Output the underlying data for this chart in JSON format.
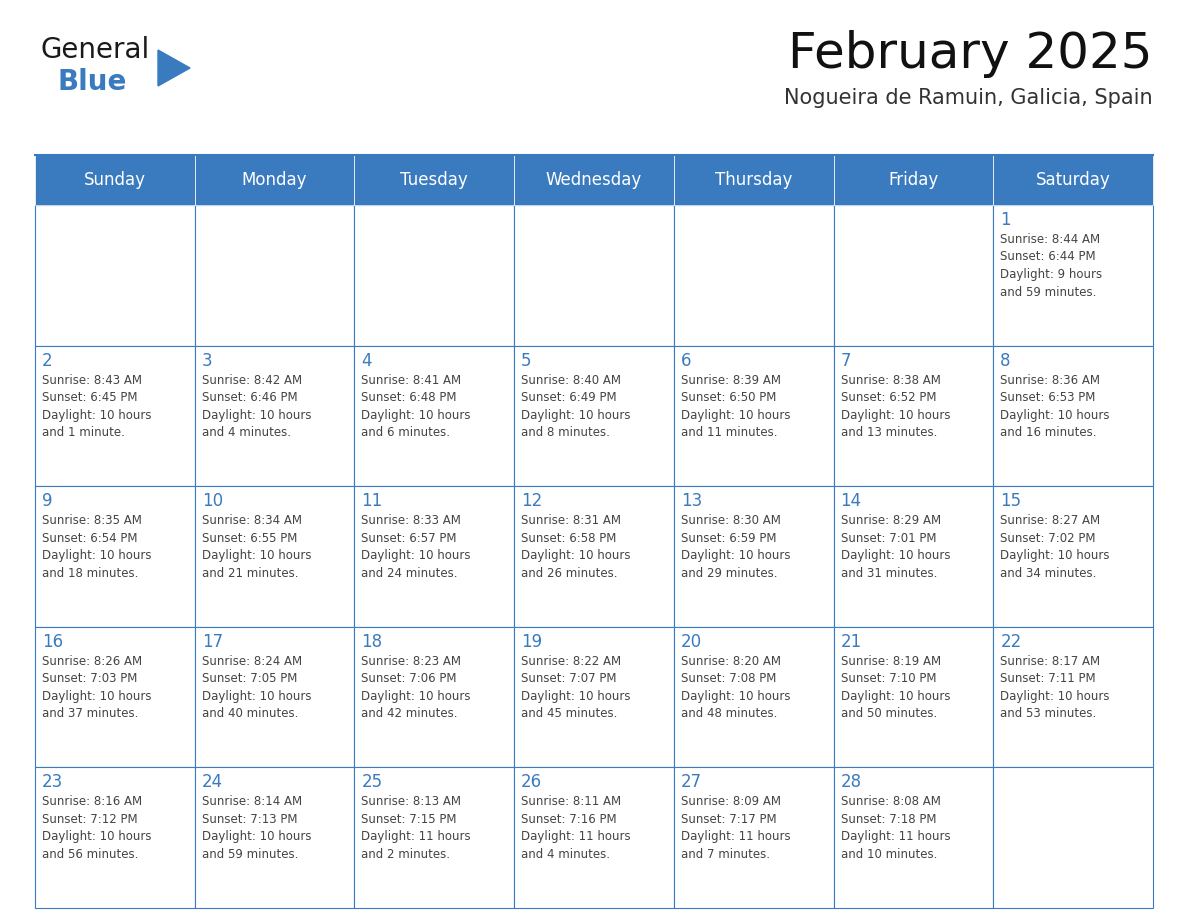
{
  "title": "February 2025",
  "subtitle": "Nogueira de Ramuin, Galicia, Spain",
  "header_color": "#3a7bbf",
  "header_text_color": "#ffffff",
  "cell_bg_color": "#ffffff",
  "border_color": "#3a7bbf",
  "text_color": "#444444",
  "day_number_color": "#3a7bbf",
  "days_of_week": [
    "Sunday",
    "Monday",
    "Tuesday",
    "Wednesday",
    "Thursday",
    "Friday",
    "Saturday"
  ],
  "weeks": [
    [
      {
        "day": null,
        "info": null
      },
      {
        "day": null,
        "info": null
      },
      {
        "day": null,
        "info": null
      },
      {
        "day": null,
        "info": null
      },
      {
        "day": null,
        "info": null
      },
      {
        "day": null,
        "info": null
      },
      {
        "day": 1,
        "info": "Sunrise: 8:44 AM\nSunset: 6:44 PM\nDaylight: 9 hours\nand 59 minutes."
      }
    ],
    [
      {
        "day": 2,
        "info": "Sunrise: 8:43 AM\nSunset: 6:45 PM\nDaylight: 10 hours\nand 1 minute."
      },
      {
        "day": 3,
        "info": "Sunrise: 8:42 AM\nSunset: 6:46 PM\nDaylight: 10 hours\nand 4 minutes."
      },
      {
        "day": 4,
        "info": "Sunrise: 8:41 AM\nSunset: 6:48 PM\nDaylight: 10 hours\nand 6 minutes."
      },
      {
        "day": 5,
        "info": "Sunrise: 8:40 AM\nSunset: 6:49 PM\nDaylight: 10 hours\nand 8 minutes."
      },
      {
        "day": 6,
        "info": "Sunrise: 8:39 AM\nSunset: 6:50 PM\nDaylight: 10 hours\nand 11 minutes."
      },
      {
        "day": 7,
        "info": "Sunrise: 8:38 AM\nSunset: 6:52 PM\nDaylight: 10 hours\nand 13 minutes."
      },
      {
        "day": 8,
        "info": "Sunrise: 8:36 AM\nSunset: 6:53 PM\nDaylight: 10 hours\nand 16 minutes."
      }
    ],
    [
      {
        "day": 9,
        "info": "Sunrise: 8:35 AM\nSunset: 6:54 PM\nDaylight: 10 hours\nand 18 minutes."
      },
      {
        "day": 10,
        "info": "Sunrise: 8:34 AM\nSunset: 6:55 PM\nDaylight: 10 hours\nand 21 minutes."
      },
      {
        "day": 11,
        "info": "Sunrise: 8:33 AM\nSunset: 6:57 PM\nDaylight: 10 hours\nand 24 minutes."
      },
      {
        "day": 12,
        "info": "Sunrise: 8:31 AM\nSunset: 6:58 PM\nDaylight: 10 hours\nand 26 minutes."
      },
      {
        "day": 13,
        "info": "Sunrise: 8:30 AM\nSunset: 6:59 PM\nDaylight: 10 hours\nand 29 minutes."
      },
      {
        "day": 14,
        "info": "Sunrise: 8:29 AM\nSunset: 7:01 PM\nDaylight: 10 hours\nand 31 minutes."
      },
      {
        "day": 15,
        "info": "Sunrise: 8:27 AM\nSunset: 7:02 PM\nDaylight: 10 hours\nand 34 minutes."
      }
    ],
    [
      {
        "day": 16,
        "info": "Sunrise: 8:26 AM\nSunset: 7:03 PM\nDaylight: 10 hours\nand 37 minutes."
      },
      {
        "day": 17,
        "info": "Sunrise: 8:24 AM\nSunset: 7:05 PM\nDaylight: 10 hours\nand 40 minutes."
      },
      {
        "day": 18,
        "info": "Sunrise: 8:23 AM\nSunset: 7:06 PM\nDaylight: 10 hours\nand 42 minutes."
      },
      {
        "day": 19,
        "info": "Sunrise: 8:22 AM\nSunset: 7:07 PM\nDaylight: 10 hours\nand 45 minutes."
      },
      {
        "day": 20,
        "info": "Sunrise: 8:20 AM\nSunset: 7:08 PM\nDaylight: 10 hours\nand 48 minutes."
      },
      {
        "day": 21,
        "info": "Sunrise: 8:19 AM\nSunset: 7:10 PM\nDaylight: 10 hours\nand 50 minutes."
      },
      {
        "day": 22,
        "info": "Sunrise: 8:17 AM\nSunset: 7:11 PM\nDaylight: 10 hours\nand 53 minutes."
      }
    ],
    [
      {
        "day": 23,
        "info": "Sunrise: 8:16 AM\nSunset: 7:12 PM\nDaylight: 10 hours\nand 56 minutes."
      },
      {
        "day": 24,
        "info": "Sunrise: 8:14 AM\nSunset: 7:13 PM\nDaylight: 10 hours\nand 59 minutes."
      },
      {
        "day": 25,
        "info": "Sunrise: 8:13 AM\nSunset: 7:15 PM\nDaylight: 11 hours\nand 2 minutes."
      },
      {
        "day": 26,
        "info": "Sunrise: 8:11 AM\nSunset: 7:16 PM\nDaylight: 11 hours\nand 4 minutes."
      },
      {
        "day": 27,
        "info": "Sunrise: 8:09 AM\nSunset: 7:17 PM\nDaylight: 11 hours\nand 7 minutes."
      },
      {
        "day": 28,
        "info": "Sunrise: 8:08 AM\nSunset: 7:18 PM\nDaylight: 11 hours\nand 10 minutes."
      },
      {
        "day": null,
        "info": null
      }
    ]
  ],
  "logo_color_general": "#1a1a1a",
  "logo_color_blue": "#3a7bbf",
  "logo_triangle_color": "#3a7bbf",
  "fig_width": 11.88,
  "fig_height": 9.18,
  "dpi": 100
}
